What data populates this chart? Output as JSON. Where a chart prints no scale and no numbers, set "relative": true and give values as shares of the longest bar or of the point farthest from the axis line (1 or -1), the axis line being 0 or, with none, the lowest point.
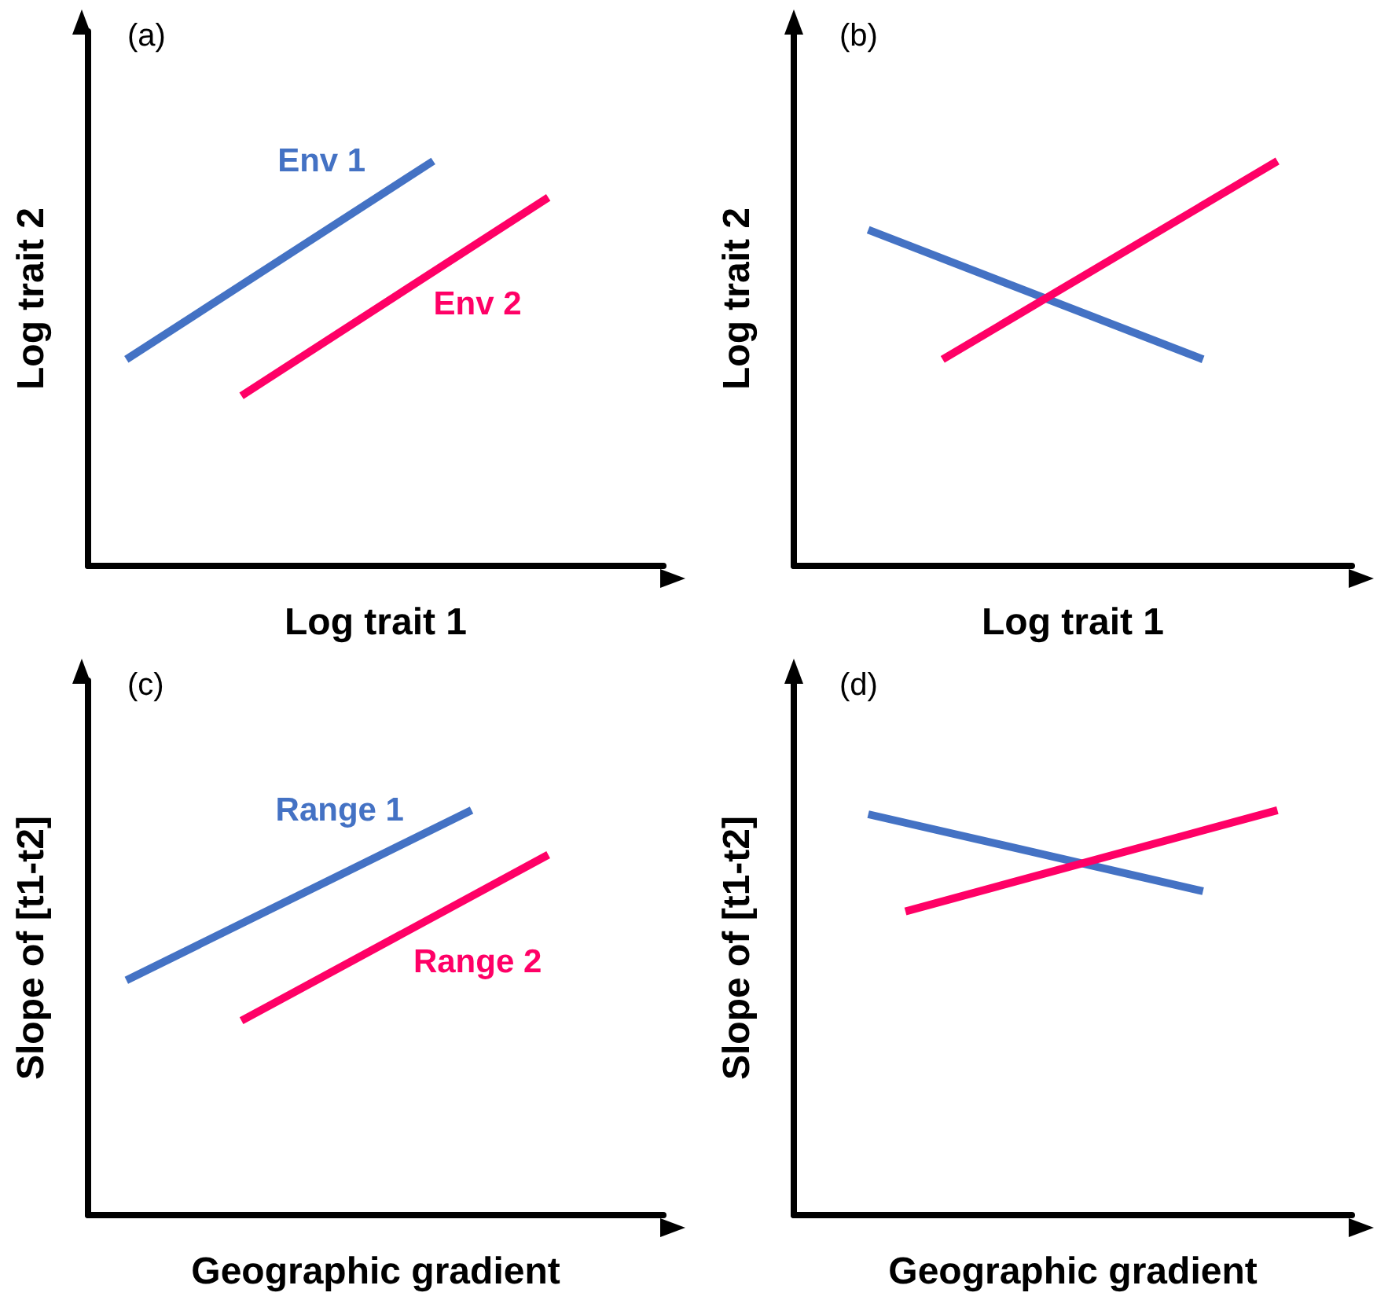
{
  "chart_data": [
    {
      "type": "line",
      "relative": true,
      "title": "(a)",
      "xlabel": "Log trait 1",
      "ylabel": "Log trait 2",
      "legend": false,
      "marker": "none",
      "categories": [
        null,
        null,
        null,
        null,
        null,
        null,
        null,
        null,
        null,
        null,
        null,
        null,
        null,
        null,
        null,
        null
      ],
      "series": [
        {
          "name": "Env 1",
          "color": "#4472c4",
          "values": [
            null,
            0.51,
            null,
            null,
            null,
            null,
            null,
            null,
            null,
            1,
            null,
            null,
            null,
            null,
            null,
            null
          ]
        },
        {
          "name": "Env 2",
          "color": "#ff0066",
          "values": [
            null,
            null,
            null,
            null,
            0.42,
            null,
            null,
            null,
            null,
            null,
            null,
            null,
            0.91,
            null,
            null,
            null
          ]
        }
      ]
    },
    {
      "type": "line",
      "relative": true,
      "title": "(b)",
      "xlabel": "Log trait 1",
      "ylabel": "Log trait 2",
      "legend": false,
      "marker": "none",
      "categories": [
        null,
        null,
        null,
        null,
        null,
        null,
        null,
        null,
        null,
        null,
        null,
        null,
        null,
        null,
        null,
        null
      ],
      "series": [
        {
          "color": "#4472c4",
          "values": [
            null,
            null,
            0.83,
            null,
            null,
            null,
            null,
            null,
            null,
            null,
            null,
            0.51,
            null,
            null,
            null,
            null
          ]
        },
        {
          "color": "#ff0066",
          "values": [
            null,
            null,
            null,
            null,
            0.51,
            null,
            null,
            null,
            null,
            null,
            null,
            null,
            null,
            1,
            null,
            null
          ]
        }
      ]
    },
    {
      "type": "line",
      "relative": true,
      "title": "(c)",
      "xlabel": "Geographic gradient",
      "ylabel": "Slope of [t1-t2]",
      "legend": false,
      "marker": "none",
      "categories": [
        null,
        null,
        null,
        null,
        null,
        null,
        null,
        null,
        null,
        null,
        null,
        null,
        null,
        null,
        null,
        null
      ],
      "series": [
        {
          "name": "Range 1",
          "color": "#4472c4",
          "values": [
            null,
            0.58,
            null,
            null,
            null,
            null,
            null,
            null,
            null,
            null,
            1,
            null,
            null,
            null,
            null,
            null
          ]
        },
        {
          "name": "Range 2",
          "color": "#ff0066",
          "values": [
            null,
            null,
            null,
            null,
            0.48,
            null,
            null,
            null,
            null,
            null,
            null,
            null,
            0.89,
            null,
            null,
            null
          ]
        }
      ]
    },
    {
      "type": "line",
      "relative": true,
      "title": "(d)",
      "xlabel": "Geographic gradient",
      "ylabel": "Slope of [t1-t2]",
      "legend": false,
      "marker": "none",
      "categories": [
        null,
        null,
        null,
        null,
        null,
        null,
        null,
        null,
        null,
        null,
        null,
        null,
        null,
        null,
        null,
        null
      ],
      "series": [
        {
          "color": "#4472c4",
          "values": [
            null,
            null,
            0.99,
            null,
            null,
            null,
            null,
            null,
            null,
            null,
            null,
            0.8,
            null,
            null,
            null,
            null
          ]
        },
        {
          "color": "#ff0066",
          "values": [
            null,
            null,
            null,
            0.75,
            null,
            null,
            null,
            null,
            null,
            null,
            null,
            null,
            null,
            1,
            null,
            null
          ]
        }
      ]
    }
  ]
}
